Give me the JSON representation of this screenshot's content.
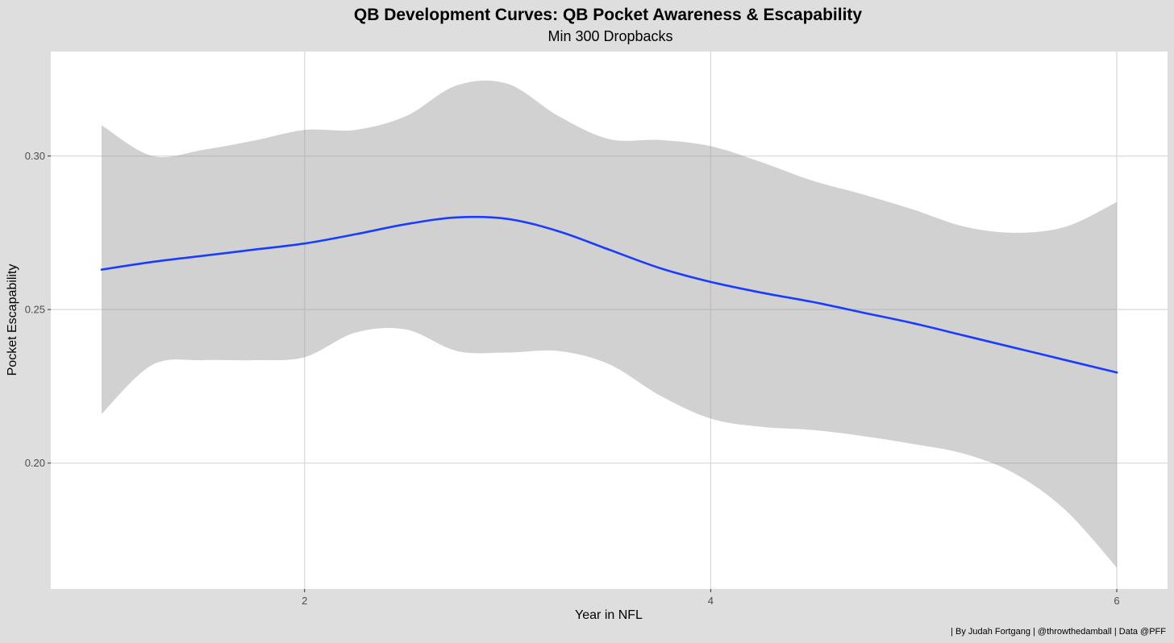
{
  "chart_data": {
    "type": "line",
    "title": "QB Development Curves: QB Pocket Awareness & Escapability",
    "subtitle": "Min 300 Dropbacks",
    "xlabel": "Year in NFL",
    "ylabel": "Pocket Escapability",
    "caption": "| By Judah Fortgang | @throwthedamball | Data @PFF",
    "xlim": [
      0.75,
      6.25
    ],
    "ylim": [
      0.159,
      0.334
    ],
    "x_ticks": [
      2,
      4,
      6
    ],
    "x_tick_labels": [
      "2",
      "4",
      "6"
    ],
    "y_ticks": [
      0.2,
      0.25,
      0.3
    ],
    "y_tick_labels": [
      "0.20",
      "0.25",
      "0.30"
    ],
    "grid": true,
    "legend": "none",
    "colors": {
      "line": "#1a3cff",
      "band": "#999999",
      "panel": "#ffffff",
      "background": "#dedede",
      "grid": "#d9d9d9"
    },
    "series": [
      {
        "x": [
          1.0,
          1.25,
          1.5,
          1.75,
          2.0,
          2.25,
          2.5,
          2.75,
          3.0,
          3.25,
          3.5,
          3.75,
          4.0,
          4.25,
          4.5,
          4.75,
          5.0,
          5.25,
          5.5,
          5.75,
          6.0
        ],
        "y": [
          0.263,
          0.2655,
          0.2675,
          0.2695,
          0.2715,
          0.2745,
          0.2778,
          0.28,
          0.2795,
          0.2755,
          0.2695,
          0.2635,
          0.259,
          0.2555,
          0.2525,
          0.249,
          0.2455,
          0.2415,
          0.2375,
          0.2335,
          0.2295
        ]
      }
    ],
    "confidence_band": {
      "x": [
        1.0,
        1.25,
        1.5,
        1.75,
        2.0,
        2.25,
        2.5,
        2.75,
        3.0,
        3.25,
        3.5,
        3.75,
        4.0,
        4.25,
        4.5,
        4.75,
        5.0,
        5.25,
        5.5,
        5.75,
        6.0
      ],
      "upper": [
        0.31,
        0.3,
        0.302,
        0.305,
        0.3085,
        0.3085,
        0.313,
        0.323,
        0.3235,
        0.313,
        0.3055,
        0.3052,
        0.3032,
        0.298,
        0.292,
        0.2875,
        0.2825,
        0.277,
        0.275,
        0.277,
        0.285
      ],
      "lower": [
        0.216,
        0.232,
        0.2335,
        0.2335,
        0.2345,
        0.2425,
        0.2435,
        0.2365,
        0.236,
        0.2365,
        0.2322,
        0.222,
        0.2145,
        0.2118,
        0.2108,
        0.2088,
        0.2062,
        0.203,
        0.1965,
        0.1845,
        0.166
      ]
    }
  }
}
